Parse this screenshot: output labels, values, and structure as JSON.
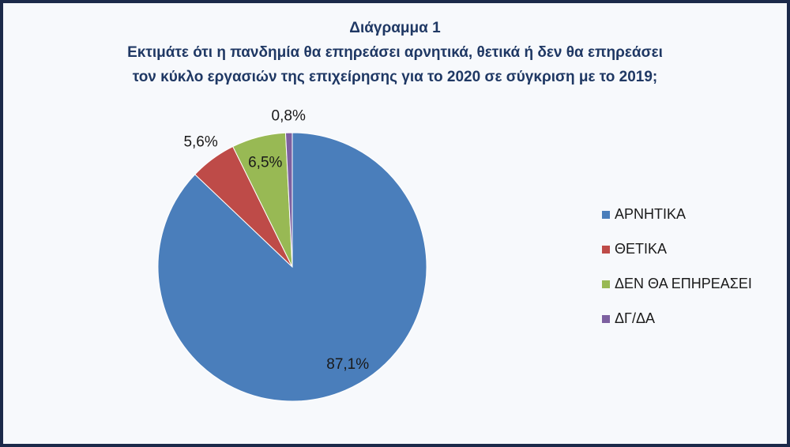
{
  "chart_data": {
    "type": "pie",
    "title": "Διάγραμμα 1",
    "subtitle": [
      "Εκτιμάτε ότι η πανδημία θα επηρεάσει αρνητικά, θετικά ή δεν θα επηρεάσει",
      "τον κύκλο εργασιών της επιχείρησης για το 2020 σε σύγκριση με το 2019;"
    ],
    "categories": [
      "ΑΡΝΗΤΙΚΑ",
      "ΘΕΤΙΚΑ",
      "ΔΕΝ ΘΑ ΕΠΗΡΕΑΣΕΙ",
      "ΔΓ/ΔΑ"
    ],
    "values": [
      87.1,
      5.6,
      6.5,
      0.8
    ],
    "value_labels": [
      "87,1%",
      "5,6%",
      "6,5%",
      "0,8%"
    ],
    "colors": [
      "#4a7ebb",
      "#be4b48",
      "#98b954",
      "#7d60a0"
    ],
    "legend": "right"
  }
}
